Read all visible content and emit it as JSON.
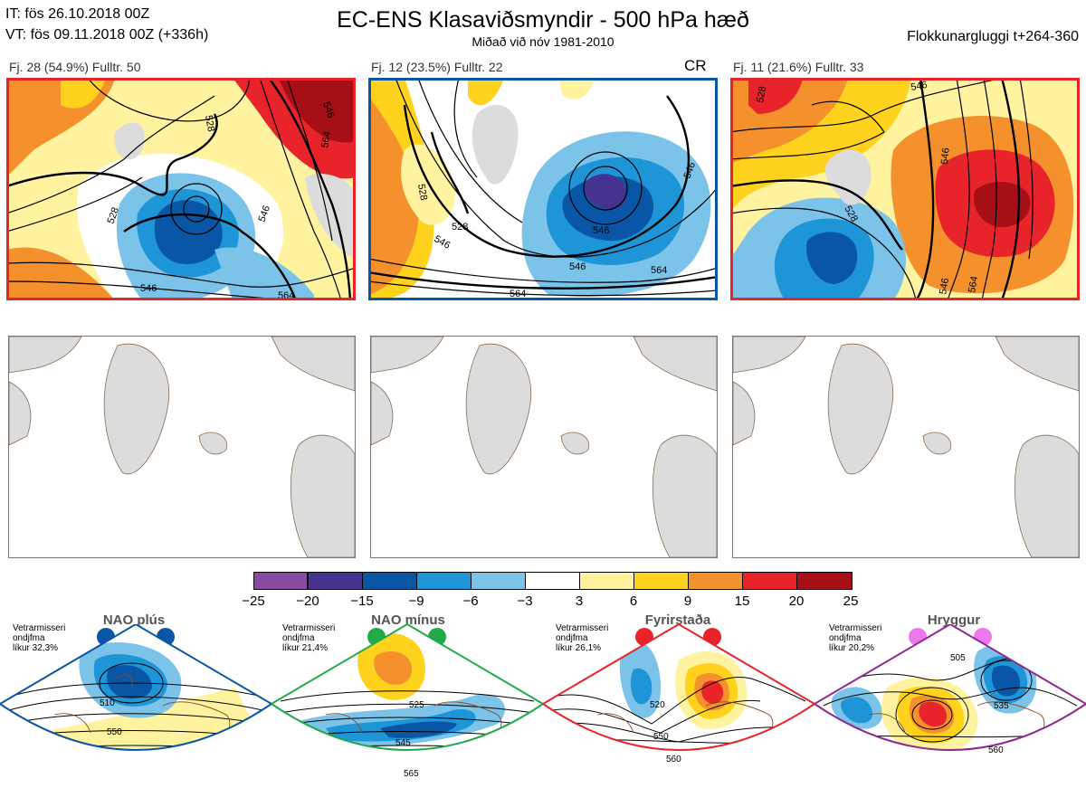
{
  "header": {
    "it_line": "IT: fös 26.10.2018 00Z",
    "vt_line": "VT: fös 09.11.2018 00Z  (+336h)",
    "title": "EC-ENS Klasaviðsmyndir - 500 hPa hæð",
    "subtitle": "Miðað við nóv 1981-2010",
    "window": "Flokkunargluggi t+264-360"
  },
  "panels": [
    {
      "label": "Fj. 28 (54.9%)   Fulltr. 50",
      "tag": "",
      "border_color": "#e8242a",
      "contours": [
        "528",
        "546",
        "564",
        "546",
        "528",
        "546",
        "564"
      ]
    },
    {
      "label": "Fj. 12 (23.5%)   Fulltr. 22",
      "tag": "CR",
      "border_color": "#0a56a6",
      "contours": [
        "528",
        "546",
        "528",
        "546",
        "564",
        "564",
        "546",
        "546"
      ]
    },
    {
      "label": "Fj. 11 (21.6%)   Fulltr. 33",
      "tag": "",
      "border_color": "#e8242a",
      "contours": [
        "528",
        "546",
        "528",
        "546",
        "546",
        "564"
      ]
    }
  ],
  "colorbar": {
    "ticks": [
      "−25",
      "−20",
      "−15",
      "−9",
      "−6",
      "−3",
      "3",
      "6",
      "9",
      "15",
      "20",
      "25"
    ],
    "colors": [
      "#8a4aa2",
      "#46328f",
      "#0a56a6",
      "#1e95d6",
      "#7cc3ea",
      "#ffffff",
      "#fff3a0",
      "#ffd21e",
      "#f5912d",
      "#e8242a",
      "#a50f15"
    ]
  },
  "regimes": [
    {
      "title": "NAO plús",
      "note": [
        "Vetrarmisseri",
        "ondjfma",
        "líkur 32,3%"
      ],
      "color": "#0a56a6",
      "contours": [
        "510",
        "550"
      ]
    },
    {
      "title": "NAO mínus",
      "note": [
        "Vetrarmisseri",
        "ondjfma",
        "líkur 21,4%"
      ],
      "color": "#22aa4a",
      "contours": [
        "525",
        "545",
        "565"
      ]
    },
    {
      "title": "Fyrirstaða",
      "note": [
        "Vetrarmisseri",
        "ondjfma",
        "líkur 26,1%"
      ],
      "color": "#e8242a",
      "contours": [
        "520",
        "550",
        "560"
      ]
    },
    {
      "title": "Hryggur",
      "note": [
        "Vetrarmisseri",
        "ondjfma",
        "líkur 20,2%"
      ],
      "color": "#8e2a8e",
      "contours": [
        "505",
        "535",
        "560"
      ]
    }
  ]
}
